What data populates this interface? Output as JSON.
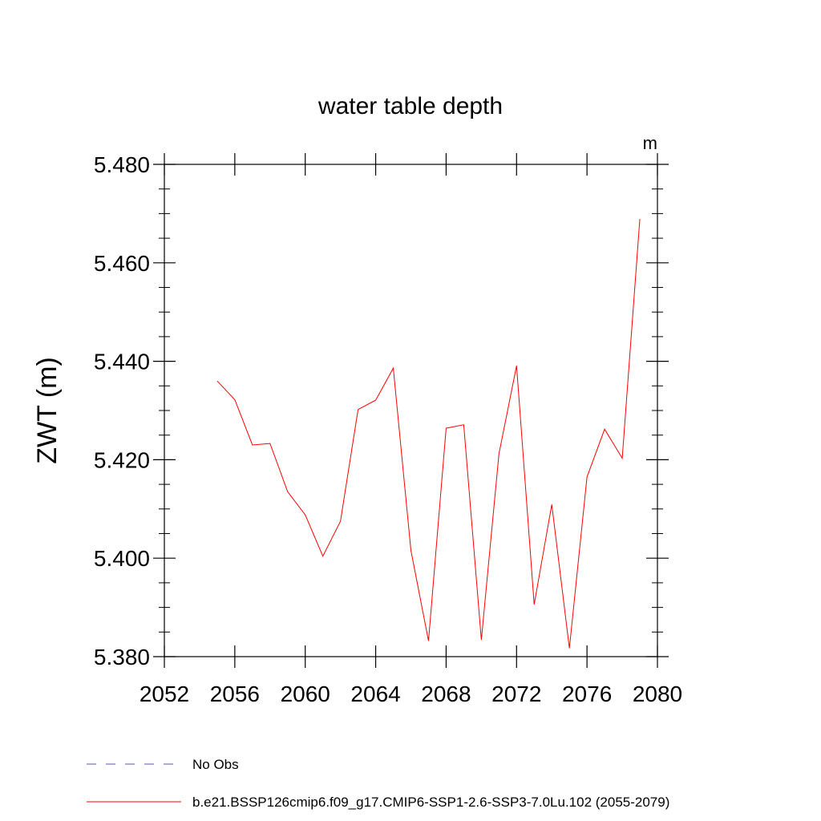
{
  "chart_data": {
    "type": "line",
    "title": "water table depth",
    "units_label": "m",
    "ylabel": "ZWT  (m)",
    "xlabel": "",
    "xlim": [
      2052,
      2080
    ],
    "ylim": [
      5.38,
      5.48
    ],
    "x_ticks": [
      2052,
      2056,
      2060,
      2064,
      2068,
      2072,
      2076,
      2080
    ],
    "x_tick_labels": [
      "2052",
      "2056",
      "2060",
      "2064",
      "2068",
      "2072",
      "2076",
      "2080"
    ],
    "y_ticks": [
      5.38,
      5.4,
      5.42,
      5.44,
      5.46,
      5.48
    ],
    "y_tick_labels": [
      "5.380",
      "5.400",
      "5.420",
      "5.440",
      "5.460",
      "5.480"
    ],
    "grid": false,
    "legend_position": "bottom",
    "series": [
      {
        "name": "b.e21.BSSP126cmip6.f09_g17.CMIP6-SSP1-2.6-SSP3-7.0Lu.102 (2055-2079)",
        "color": "#ff0000",
        "style": "solid",
        "x": [
          2055,
          2056,
          2057,
          2058,
          2059,
          2060,
          2061,
          2062,
          2063,
          2064,
          2065,
          2066,
          2067,
          2068,
          2069,
          2070,
          2071,
          2072,
          2073,
          2074,
          2075,
          2076,
          2077,
          2078,
          2079
        ],
        "y": [
          5.436,
          5.4322,
          5.423,
          5.4233,
          5.4135,
          5.4088,
          5.4004,
          5.4075,
          5.4302,
          5.4321,
          5.4386,
          5.4016,
          5.3832,
          5.4264,
          5.4271,
          5.3834,
          5.4212,
          5.4391,
          5.3906,
          5.4109,
          5.3817,
          5.4165,
          5.4262,
          5.4203,
          5.4689
        ]
      }
    ],
    "legend": [
      {
        "label": "No Obs",
        "color": "#5a5aa0",
        "style": "dashed"
      },
      {
        "label": "b.e21.BSSP126cmip6.f09_g17.CMIP6-SSP1-2.6-SSP3-7.0Lu.102 (2055-2079)",
        "color": "#ff0000",
        "style": "solid"
      }
    ]
  }
}
